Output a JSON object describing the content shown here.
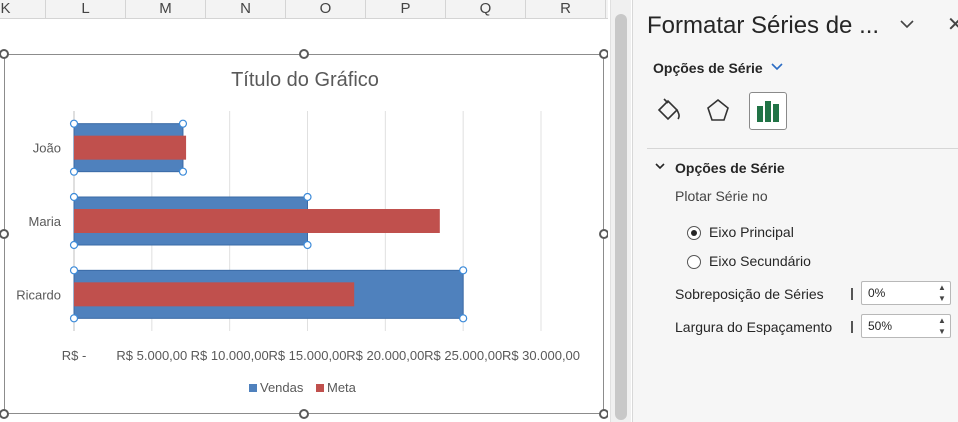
{
  "columns": [
    "K",
    "L",
    "M",
    "N",
    "O",
    "P",
    "Q",
    "R"
  ],
  "chart_data": {
    "type": "bar",
    "orientation": "horizontal",
    "title": "Título do Gráfico",
    "categories": [
      "João",
      "Maria",
      "Ricardo"
    ],
    "series": [
      {
        "name": "Vendas",
        "values": [
          7000,
          15000,
          25000
        ],
        "color": "#4f81bd"
      },
      {
        "name": "Meta",
        "values": [
          7200,
          23500,
          18000
        ],
        "color": "#c0504d"
      }
    ],
    "xlim": [
      0,
      30000
    ],
    "tick_labels": [
      "R$ -",
      "R$ 5.000,00",
      "R$ 10.000,00",
      "R$ 15.000,00",
      "R$ 20.000,00",
      "R$ 25.000,00",
      "R$ 30.000,00"
    ],
    "legend_position": "bottom",
    "selected_series": "Vendas",
    "grid": true
  },
  "pane": {
    "title": "Formatar Séries de ...",
    "chevron_icon": "chevron-down-icon",
    "close_icon": "close-icon",
    "subtitle": "Opções de Série",
    "icons": [
      "paint-bucket-icon",
      "pentagon-icon",
      "bar-chart-icon"
    ],
    "section_title": "Opções de Série",
    "plot_label": "Plotar Série no",
    "radio_primary": "Eixo Principal",
    "radio_secondary": "Eixo Secundário",
    "overlap_label": "Sobreposição de Séries",
    "overlap_value": "0%",
    "gap_label": "Largura do Espaçamento",
    "gap_value": "50%"
  }
}
